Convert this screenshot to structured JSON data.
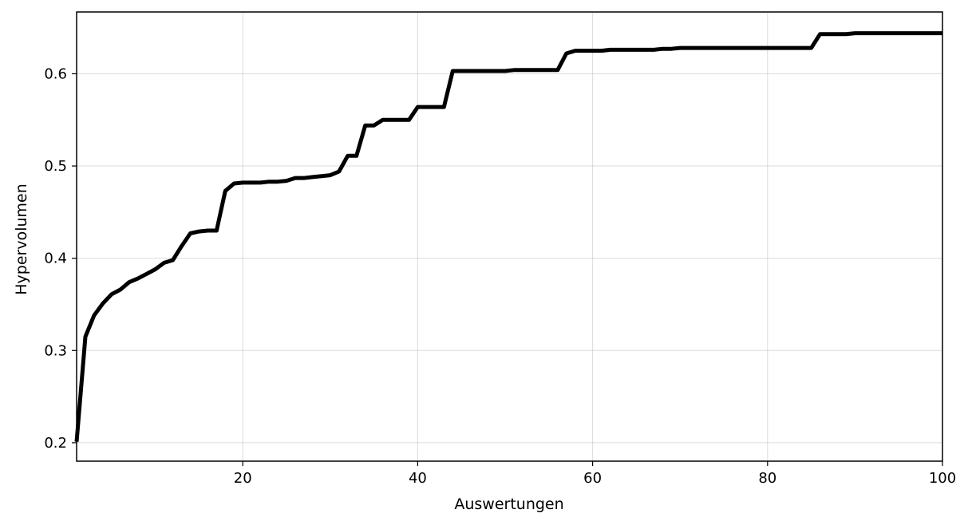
{
  "chart_data": {
    "type": "line",
    "title": "",
    "xlabel": "Auswertungen",
    "ylabel": "Hypervolumen",
    "xlim": [
      1,
      100
    ],
    "ylim": [
      0.18,
      0.667
    ],
    "xticks": [
      20,
      40,
      60,
      80,
      100
    ],
    "yticks": [
      0.2,
      0.3,
      0.4,
      0.5,
      0.6
    ],
    "xtick_labels": [
      "20",
      "40",
      "60",
      "80",
      "100"
    ],
    "ytick_labels": [
      "0.2",
      "0.3",
      "0.4",
      "0.5",
      "0.6"
    ],
    "grid": true,
    "legend": "none",
    "line_color": "#000000",
    "series": [
      {
        "x": [
          1,
          2,
          3,
          4,
          5,
          6,
          7,
          8,
          9,
          10,
          11,
          12,
          13,
          14,
          15,
          16,
          17,
          18,
          19,
          20,
          21,
          22,
          23,
          24,
          25,
          26,
          27,
          28,
          29,
          30,
          31,
          32,
          33,
          34,
          35,
          36,
          37,
          38,
          39,
          40,
          41,
          42,
          43,
          44,
          45,
          46,
          47,
          48,
          49,
          50,
          51,
          52,
          53,
          54,
          55,
          56,
          57,
          58,
          59,
          60,
          61,
          62,
          63,
          64,
          65,
          66,
          67,
          68,
          69,
          70,
          71,
          72,
          73,
          74,
          75,
          76,
          77,
          78,
          79,
          80,
          81,
          82,
          83,
          84,
          85,
          86,
          87,
          88,
          89,
          90,
          91,
          92,
          93,
          94,
          95,
          96,
          97,
          98,
          99,
          100
        ],
        "y": [
          0.201,
          0.315,
          0.338,
          0.351,
          0.361,
          0.366,
          0.374,
          0.378,
          0.383,
          0.388,
          0.395,
          0.398,
          0.413,
          0.427,
          0.429,
          0.43,
          0.43,
          0.473,
          0.481,
          0.482,
          0.482,
          0.482,
          0.483,
          0.483,
          0.484,
          0.487,
          0.487,
          0.488,
          0.489,
          0.49,
          0.494,
          0.511,
          0.511,
          0.544,
          0.544,
          0.55,
          0.55,
          0.55,
          0.55,
          0.564,
          0.564,
          0.564,
          0.564,
          0.603,
          0.603,
          0.603,
          0.603,
          0.603,
          0.603,
          0.603,
          0.604,
          0.604,
          0.604,
          0.604,
          0.604,
          0.604,
          0.622,
          0.625,
          0.625,
          0.625,
          0.625,
          0.626,
          0.626,
          0.626,
          0.626,
          0.626,
          0.626,
          0.627,
          0.627,
          0.628,
          0.628,
          0.628,
          0.628,
          0.628,
          0.628,
          0.628,
          0.628,
          0.628,
          0.628,
          0.628,
          0.628,
          0.628,
          0.628,
          0.628,
          0.628,
          0.643,
          0.643,
          0.643,
          0.643,
          0.644,
          0.644,
          0.644,
          0.644,
          0.644,
          0.644,
          0.644,
          0.644,
          0.644,
          0.644,
          0.644
        ]
      }
    ]
  }
}
